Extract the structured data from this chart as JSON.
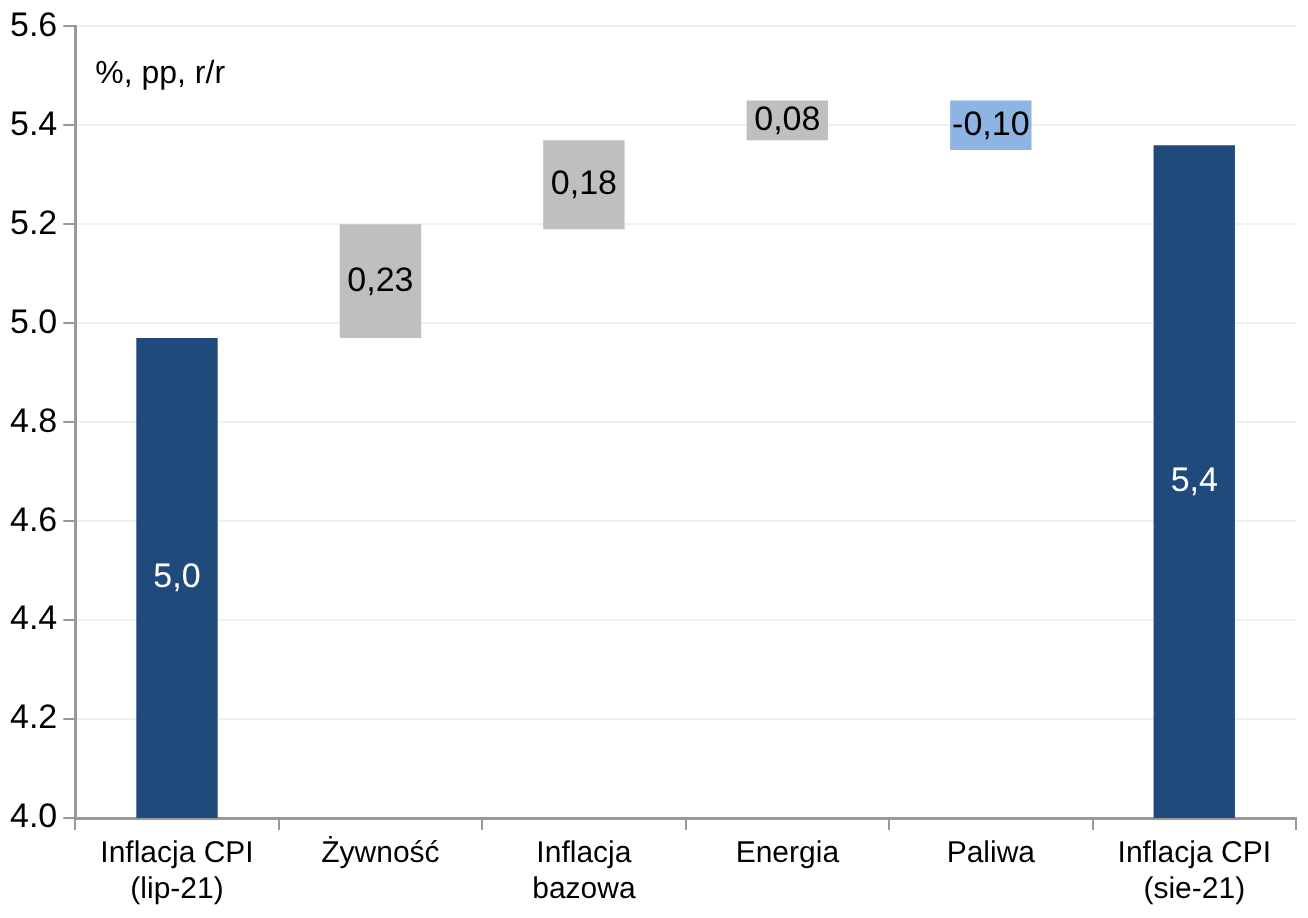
{
  "chart_data": {
    "type": "bar",
    "categories": [
      "Inflacja CPI\n(lip-21)",
      "Żywność",
      "Inflacja\nbazowa",
      "Energia",
      "Paliwa",
      "Inflacja CPI\n(sie-21)"
    ],
    "values": [
      4.97,
      0.23,
      0.18,
      0.08,
      -0.1,
      5.36
    ],
    "base": [
      null,
      4.97,
      5.19,
      5.37,
      5.45,
      null
    ],
    "colors": [
      "#214a7c",
      "#bfbfbf",
      "#bfbfbf",
      "#bfbfbf",
      "#8db4e2",
      "#214a7c"
    ],
    "value_labels": [
      "5,0",
      "0,23",
      "0,18",
      "0,08",
      "-0,10",
      "5,4"
    ],
    "ylabel": "%, pp, r/r",
    "ylim": [
      4.0,
      5.6
    ],
    "yticks": [
      {
        "value": 4.0,
        "label": "4.0"
      },
      {
        "value": 4.2,
        "label": "4.2"
      },
      {
        "value": 4.4,
        "label": "4.4"
      },
      {
        "value": 4.6,
        "label": "4.6"
      },
      {
        "value": 4.8,
        "label": "4.8"
      },
      {
        "value": 5.0,
        "label": "5.0"
      },
      {
        "value": 5.2,
        "label": "5.2"
      },
      {
        "value": 5.4,
        "label": "5.4"
      },
      {
        "value": 5.6,
        "label": "5.6"
      }
    ],
    "grid": "y",
    "legend": false
  }
}
